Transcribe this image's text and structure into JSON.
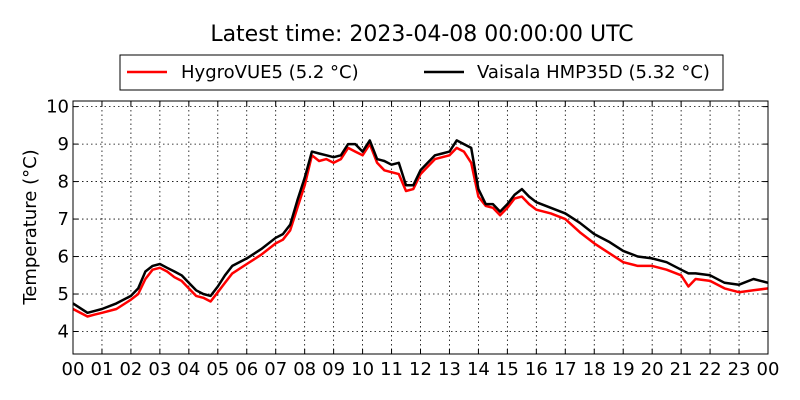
{
  "chart_data": {
    "type": "line",
    "title": "Latest time: 2023-04-08 00:00:00 UTC",
    "xlabel": "",
    "ylabel": "Temperature (°C)",
    "xlim": [
      0,
      24
    ],
    "ylim": [
      3.4,
      10.15
    ],
    "grid": true,
    "legend_placement": "top-center",
    "x_tick_values": [
      0,
      1,
      2,
      3,
      4,
      5,
      6,
      7,
      8,
      9,
      10,
      11,
      12,
      13,
      14,
      15,
      16,
      17,
      18,
      19,
      20,
      21,
      22,
      23,
      24
    ],
    "x_tick_labels": [
      "00",
      "01",
      "02",
      "03",
      "04",
      "05",
      "06",
      "07",
      "08",
      "09",
      "10",
      "11",
      "12",
      "13",
      "14",
      "15",
      "16",
      "17",
      "18",
      "19",
      "20",
      "21",
      "22",
      "23",
      "00"
    ],
    "y_tick_values": [
      4,
      5,
      6,
      7,
      8,
      9,
      10
    ],
    "y_tick_labels": [
      "4",
      "5",
      "6",
      "7",
      "8",
      "9",
      "10"
    ],
    "series": [
      {
        "name": "HygroVUE5 (5.2 °C)",
        "color": "#ff0000",
        "x": [
          0,
          0.5,
          0.75,
          1,
          1.5,
          2,
          2.25,
          2.5,
          2.75,
          3,
          3.25,
          3.5,
          3.75,
          4,
          4.25,
          4.5,
          4.75,
          5,
          5.25,
          5.5,
          6,
          6.5,
          7,
          7.25,
          7.5,
          7.75,
          8,
          8.25,
          8.5,
          8.75,
          9,
          9.25,
          9.5,
          9.75,
          10,
          10.25,
          10.5,
          10.75,
          11,
          11.25,
          11.5,
          11.75,
          12,
          12.25,
          12.5,
          12.75,
          13,
          13.25,
          13.5,
          13.75,
          14,
          14.25,
          14.5,
          14.75,
          15,
          15.25,
          15.5,
          15.75,
          16,
          16.5,
          17,
          17.5,
          18,
          18.5,
          19,
          19.5,
          20,
          20.5,
          21,
          21.25,
          21.5,
          22,
          22.5,
          23,
          23.5,
          24
        ],
        "values": [
          4.6,
          4.4,
          4.45,
          4.5,
          4.6,
          4.85,
          5.0,
          5.4,
          5.65,
          5.7,
          5.6,
          5.45,
          5.35,
          5.15,
          4.95,
          4.9,
          4.8,
          5.05,
          5.3,
          5.55,
          5.8,
          6.05,
          6.35,
          6.45,
          6.7,
          7.3,
          7.9,
          8.7,
          8.55,
          8.6,
          8.5,
          8.6,
          8.9,
          8.8,
          8.7,
          9.0,
          8.5,
          8.3,
          8.25,
          8.2,
          7.75,
          7.8,
          8.2,
          8.4,
          8.6,
          8.65,
          8.7,
          8.9,
          8.8,
          8.5,
          7.6,
          7.35,
          7.3,
          7.1,
          7.3,
          7.55,
          7.6,
          7.4,
          7.25,
          7.15,
          7.0,
          6.65,
          6.35,
          6.1,
          5.85,
          5.75,
          5.75,
          5.65,
          5.5,
          5.2,
          5.4,
          5.35,
          5.15,
          5.05,
          5.1,
          5.15
        ]
      },
      {
        "name": "Vaisala HMP35D (5.32 °C)",
        "color": "#000000",
        "x": [
          0,
          0.5,
          0.75,
          1,
          1.5,
          2,
          2.25,
          2.5,
          2.75,
          3,
          3.25,
          3.5,
          3.75,
          4,
          4.25,
          4.5,
          4.75,
          5,
          5.25,
          5.5,
          6,
          6.5,
          7,
          7.25,
          7.5,
          7.75,
          8,
          8.25,
          8.5,
          8.75,
          9,
          9.25,
          9.5,
          9.75,
          10,
          10.25,
          10.5,
          10.75,
          11,
          11.25,
          11.5,
          11.75,
          12,
          12.25,
          12.5,
          12.75,
          13,
          13.25,
          13.5,
          13.75,
          14,
          14.25,
          14.5,
          14.75,
          15,
          15.25,
          15.5,
          15.75,
          16,
          16.5,
          17,
          17.5,
          18,
          18.5,
          19,
          19.5,
          20,
          20.5,
          21,
          21.25,
          21.5,
          22,
          22.5,
          23,
          23.5,
          24
        ],
        "values": [
          4.75,
          4.5,
          4.55,
          4.6,
          4.75,
          4.95,
          5.15,
          5.6,
          5.75,
          5.8,
          5.7,
          5.6,
          5.5,
          5.3,
          5.1,
          5.0,
          4.95,
          5.2,
          5.5,
          5.75,
          5.95,
          6.2,
          6.5,
          6.6,
          6.85,
          7.5,
          8.1,
          8.8,
          8.75,
          8.7,
          8.65,
          8.7,
          9.0,
          9.0,
          8.8,
          9.1,
          8.6,
          8.55,
          8.45,
          8.5,
          7.9,
          7.9,
          8.3,
          8.5,
          8.7,
          8.75,
          8.8,
          9.1,
          9.0,
          8.9,
          7.8,
          7.4,
          7.4,
          7.2,
          7.4,
          7.65,
          7.8,
          7.6,
          7.45,
          7.3,
          7.15,
          6.9,
          6.6,
          6.4,
          6.15,
          6.0,
          5.95,
          5.85,
          5.65,
          5.55,
          5.55,
          5.5,
          5.3,
          5.25,
          5.4,
          5.3
        ]
      }
    ]
  }
}
